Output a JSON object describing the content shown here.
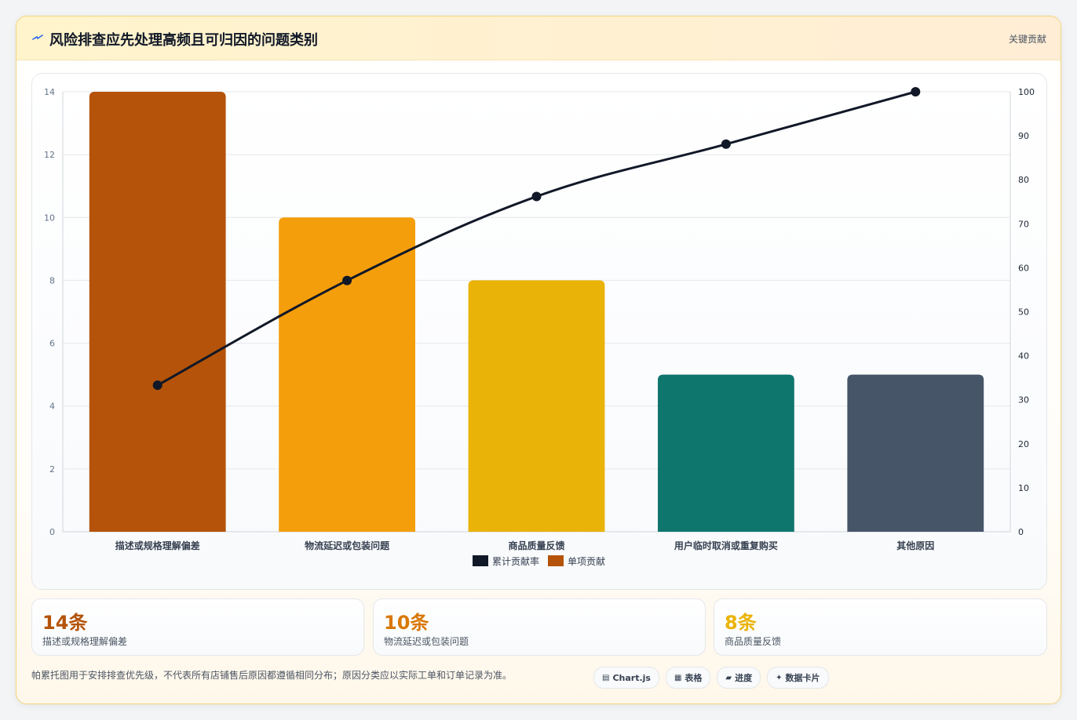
{
  "header": {
    "icon": "lightning-icon",
    "title": "风险排查应先处理高频且可归因的问题类别",
    "tag": "关键贡献"
  },
  "colors": {
    "bars": [
      "#b45309",
      "#f59e0b",
      "#eab308",
      "#0f766e",
      "#475569"
    ],
    "line": "#111827"
  },
  "chart_data": {
    "type": "bar",
    "categories": [
      "描述或规格理解偏差",
      "物流延迟或包装问题",
      "商品质量反馈",
      "用户临时取消或重复购买",
      "其他原因"
    ],
    "series": [
      {
        "name": "单项贡献",
        "type": "bar",
        "axis": "left",
        "values": [
          14,
          10,
          8,
          5,
          5
        ]
      },
      {
        "name": "累计贡献率",
        "type": "line",
        "axis": "right",
        "values": [
          33.3,
          57.1,
          76.2,
          88.1,
          100
        ]
      }
    ],
    "ylim_left": [
      0,
      14
    ],
    "yticks_left": [
      0,
      2,
      4,
      6,
      8,
      10,
      12,
      14
    ],
    "ylim_right": [
      0,
      100
    ],
    "yticks_right": [
      0,
      10,
      20,
      30,
      40,
      50,
      60,
      70,
      80,
      90,
      100
    ],
    "legend": {
      "placement": "bottom",
      "items": [
        "累计贡献率",
        "单项贡献"
      ]
    },
    "grid": true
  },
  "stats": [
    {
      "value": "14条",
      "label": "描述或规格理解偏差",
      "color": "#b45309"
    },
    {
      "value": "10条",
      "label": "物流延迟或包装问题",
      "color": "#d97706"
    },
    {
      "value": "8条",
      "label": "商品质量反馈",
      "color": "#eab308"
    }
  ],
  "note": "帕累托图用于安排排查优先级，不代表所有店铺售后原因都遵循相同分布；原因分类应以实际工单和订单记录为准。",
  "chips": [
    {
      "icon": "chart-icon",
      "glyph": "▤",
      "label": "Chart.js"
    },
    {
      "icon": "table-icon",
      "glyph": "▦",
      "label": "表格"
    },
    {
      "icon": "progress-icon",
      "glyph": "▰",
      "label": "进度"
    },
    {
      "icon": "sparkle-icon",
      "glyph": "✦",
      "label": "数据卡片"
    }
  ]
}
